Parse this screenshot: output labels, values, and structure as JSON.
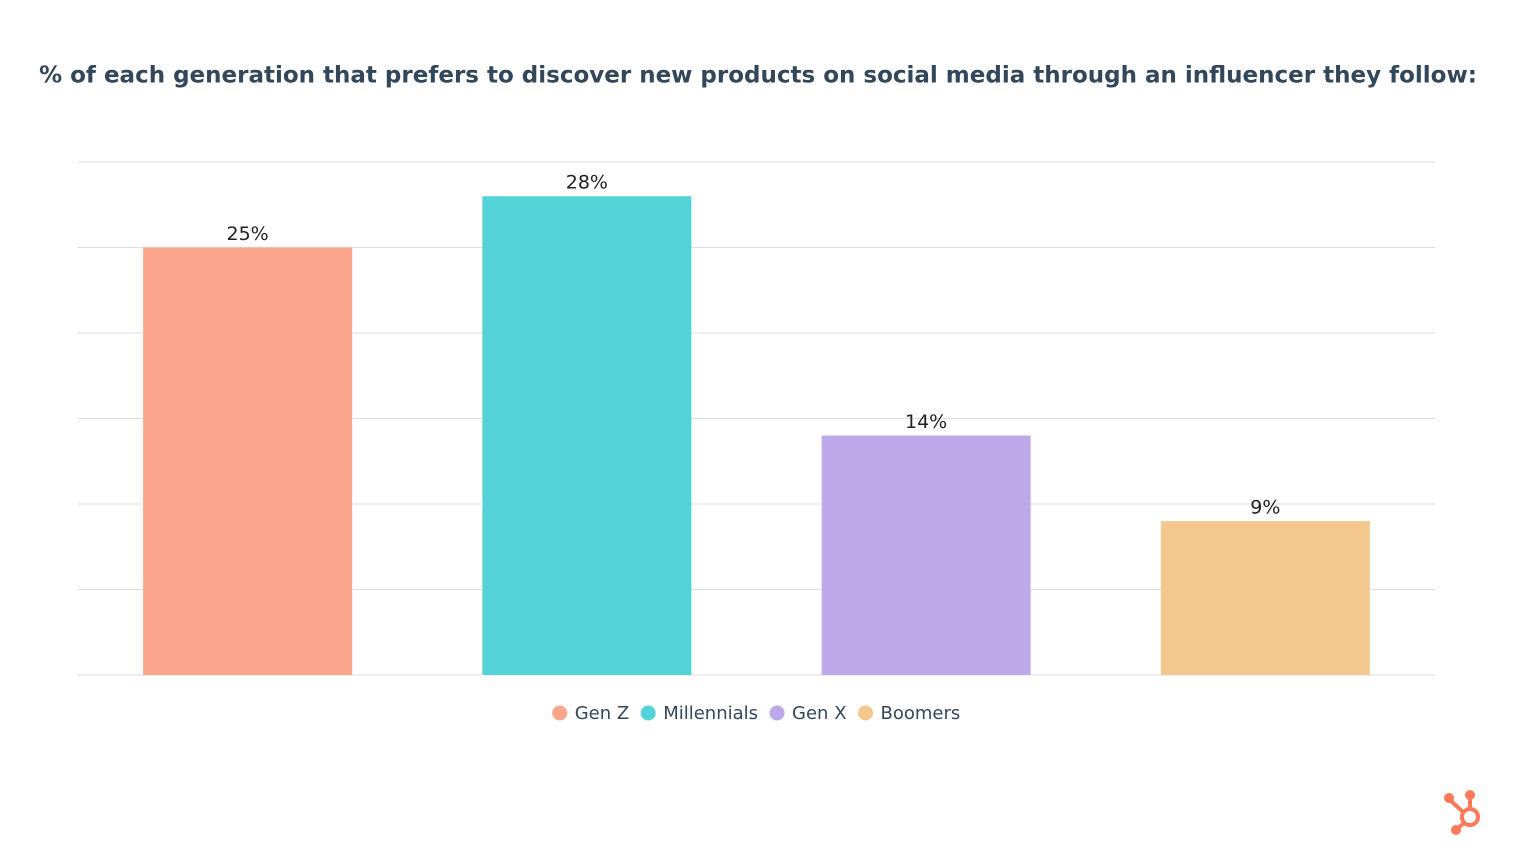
{
  "chart_data": {
    "type": "bar",
    "title": "% of each generation that prefers to discover new products on social media through an influencer they follow:",
    "categories": [
      null
    ],
    "series": [
      {
        "name": "Gen Z",
        "color": "#fba58c",
        "values": [
          25
        ],
        "value_labels": [
          "25%"
        ]
      },
      {
        "name": "Millennials",
        "color": "#53d3d8",
        "values": [
          28
        ],
        "value_labels": [
          "28%"
        ]
      },
      {
        "name": "Gen X",
        "color": "#bda9e9",
        "values": [
          14
        ],
        "value_labels": [
          "14%"
        ]
      },
      {
        "name": "Boomers",
        "color": "#f4c78f",
        "values": [
          9
        ],
        "value_labels": [
          "9%"
        ]
      }
    ],
    "ylim": [
      0,
      30
    ],
    "yticks": [
      0,
      5,
      10,
      15,
      20,
      25,
      30
    ],
    "grid": true,
    "legend": "bottom"
  }
}
